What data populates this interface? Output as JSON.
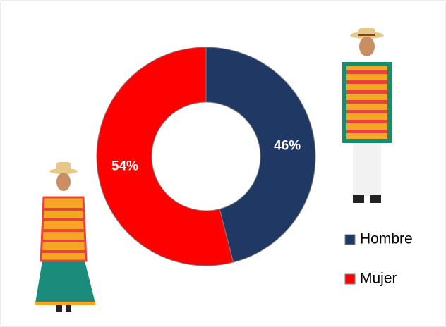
{
  "chart_data": {
    "type": "donut",
    "categories": [
      "Hombre",
      "Mujer"
    ],
    "values": [
      46,
      54
    ],
    "value_labels": [
      "46%",
      "54%"
    ],
    "colors": [
      "#1f3864",
      "#ff0000"
    ],
    "legend": "right"
  }
}
